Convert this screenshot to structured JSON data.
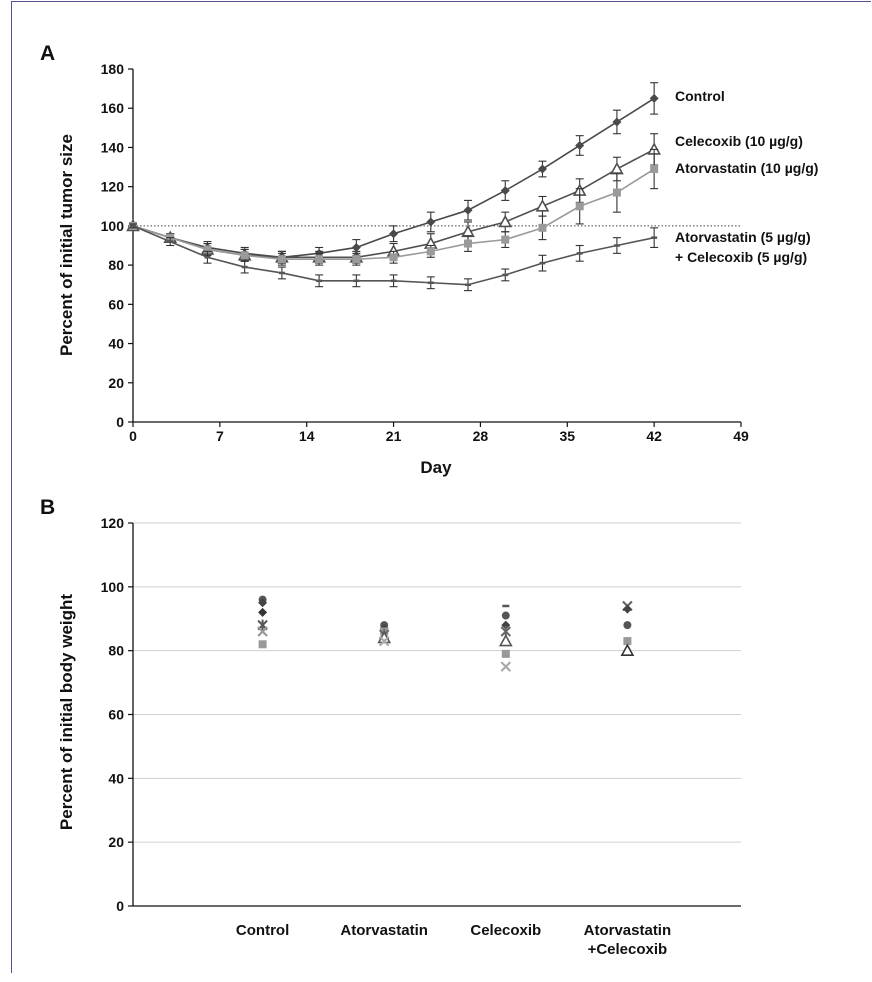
{
  "chart_data": [
    {
      "panel": "A",
      "type": "line",
      "xlabel": "Day",
      "ylabel": "Percent of initial tumor size",
      "xlim": [
        0,
        49
      ],
      "ylim": [
        0,
        180
      ],
      "xticks": [
        0,
        7,
        14,
        21,
        28,
        35,
        42,
        49
      ],
      "yticks": [
        0,
        20,
        40,
        60,
        80,
        100,
        120,
        140,
        160,
        180
      ],
      "x": [
        0,
        3,
        6,
        9,
        12,
        15,
        18,
        21,
        24,
        27,
        30,
        33,
        36,
        39,
        42
      ],
      "reference_line": 100,
      "series": [
        {
          "name": "Control",
          "color": "#4a4a4a",
          "marker": "diamond",
          "values": [
            100,
            94,
            89,
            86,
            84,
            86,
            89,
            96,
            102,
            108,
            118,
            129,
            141,
            153,
            165
          ],
          "errors": [
            1,
            2,
            3,
            3,
            3,
            3,
            4,
            4,
            5,
            5,
            5,
            4,
            5,
            6,
            8
          ]
        },
        {
          "name": "Celecoxib (10 µg/g)",
          "color": "#505050",
          "marker": "triangle-open",
          "values": [
            100,
            94,
            88,
            85,
            84,
            84,
            84,
            87,
            91,
            97,
            102,
            110,
            118,
            129,
            139
          ],
          "errors": [
            1,
            2,
            3,
            3,
            3,
            3,
            3,
            4,
            5,
            5,
            5,
            5,
            6,
            6,
            8
          ]
        },
        {
          "name": "Atorvastatin (10 µg/g)",
          "color": "#9a9a9a",
          "marker": "square",
          "values": [
            100,
            94,
            88,
            85,
            83,
            83,
            83,
            84,
            87,
            91,
            93,
            99,
            110,
            117,
            129
          ],
          "errors": [
            1,
            2,
            3,
            3,
            3,
            3,
            3,
            3,
            3,
            4,
            4,
            6,
            9,
            10,
            10
          ]
        },
        {
          "name": "Atorvastatin (5 µg/g)\n+ Celecoxib (5 µg/g)",
          "color": "#555555",
          "marker": "dash",
          "values": [
            100,
            92,
            84,
            79,
            76,
            72,
            72,
            72,
            71,
            70,
            75,
            81,
            86,
            90,
            94
          ],
          "errors": [
            1,
            2,
            3,
            3,
            3,
            3,
            3,
            3,
            3,
            3,
            3,
            4,
            4,
            4,
            5
          ]
        }
      ]
    },
    {
      "panel": "B",
      "type": "scatter",
      "ylabel": "Percent of initial body weight",
      "ylim": [
        0,
        120
      ],
      "yticks": [
        0,
        20,
        40,
        60,
        80,
        100,
        120
      ],
      "grid": true,
      "categories": [
        "Control",
        "Atorvastatin",
        "Celecoxib",
        "Atorvastatin\n+Celecoxib"
      ],
      "points": [
        {
          "category": 0,
          "values": [
            {
              "y": 96,
              "marker": "circle",
              "color": "#555"
            },
            {
              "y": 95,
              "marker": "diamond",
              "color": "#444"
            },
            {
              "y": 92,
              "marker": "diamond",
              "color": "#333"
            },
            {
              "y": 88,
              "marker": "star",
              "color": "#555"
            },
            {
              "y": 86,
              "marker": "x",
              "color": "#999"
            },
            {
              "y": 82,
              "marker": "square",
              "color": "#999"
            }
          ]
        },
        {
          "category": 1,
          "values": [
            {
              "y": 88,
              "marker": "circle",
              "color": "#555"
            },
            {
              "y": 87,
              "marker": "diamond",
              "color": "#444"
            },
            {
              "y": 86,
              "marker": "square",
              "color": "#999"
            },
            {
              "y": 85,
              "marker": "star",
              "color": "#666"
            },
            {
              "y": 84,
              "marker": "triangle-open",
              "color": "#555"
            },
            {
              "y": 83,
              "marker": "x",
              "color": "#aaa"
            }
          ]
        },
        {
          "category": 2,
          "values": [
            {
              "y": 94,
              "marker": "dash",
              "color": "#555"
            },
            {
              "y": 91,
              "marker": "circle",
              "color": "#555"
            },
            {
              "y": 88,
              "marker": "diamond",
              "color": "#444"
            },
            {
              "y": 86,
              "marker": "star",
              "color": "#666"
            },
            {
              "y": 83,
              "marker": "triangle-open",
              "color": "#555"
            },
            {
              "y": 79,
              "marker": "square",
              "color": "#999"
            },
            {
              "y": 75,
              "marker": "x",
              "color": "#aaa"
            }
          ]
        },
        {
          "category": 3,
          "values": [
            {
              "y": 94,
              "marker": "x",
              "color": "#666"
            },
            {
              "y": 93,
              "marker": "diamond",
              "color": "#444"
            },
            {
              "y": 88,
              "marker": "circle",
              "color": "#555"
            },
            {
              "y": 83,
              "marker": "square",
              "color": "#999"
            },
            {
              "y": 80,
              "marker": "triangle-open",
              "color": "#333"
            }
          ]
        }
      ]
    }
  ]
}
